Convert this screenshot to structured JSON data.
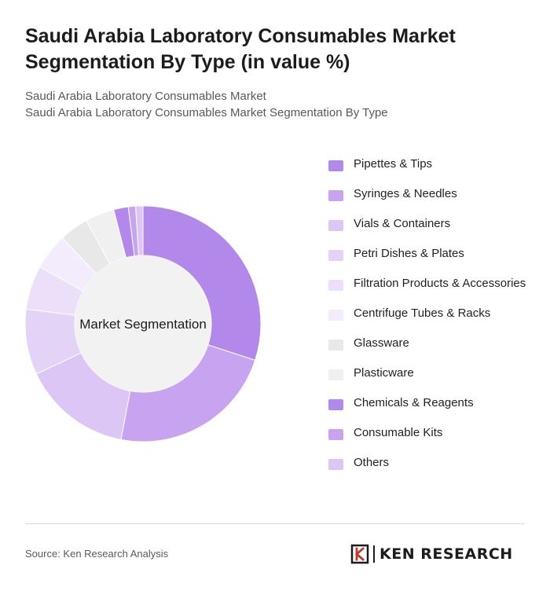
{
  "header": {
    "title": "Saudi Arabia Laboratory Consumables Market Segmentation By Type (in value %)",
    "subtitle_lines": [
      "Saudi Arabia Laboratory Consumables Market",
      "Saudi Arabia Laboratory Consumables Market Segmentation By Type"
    ]
  },
  "chart_data": {
    "type": "pie",
    "donut": true,
    "center_label": "Market Segmentation",
    "legend_position": "right",
    "categories": [
      "Pipettes & Tips",
      "Syringes & Needles",
      "Vials & Containers",
      "Petri Dishes & Plates",
      "Filtration Products & Accessories",
      "Centrifuge Tubes & Racks",
      "Glassware",
      "Plasticware",
      "Chemicals & Reagents",
      "Consumable Kits",
      "Others"
    ],
    "values": [
      30,
      23,
      15,
      9,
      6,
      5,
      4,
      4,
      2,
      1,
      1
    ],
    "colors": [
      "#b388eb",
      "#c7a3f0",
      "#dcc6f6",
      "#e3d3f7",
      "#ecdffa",
      "#f2ecfc",
      "#e8e8e8",
      "#f0f0f0",
      "#b388eb",
      "#c7a3f0",
      "#dcc6f6"
    ]
  },
  "footer": {
    "source": "Source: Ken Research Analysis",
    "logo_text": "KEN RESEARCH"
  }
}
